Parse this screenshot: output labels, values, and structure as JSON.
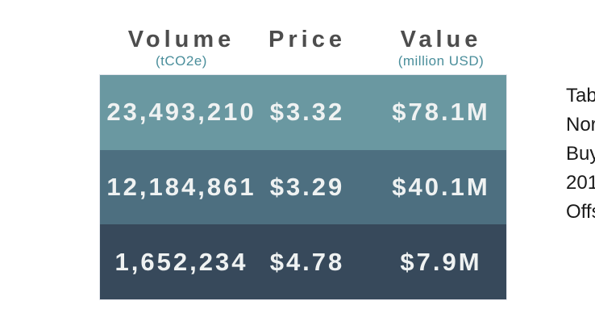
{
  "table": {
    "columns": [
      {
        "label": "Volume",
        "sublabel": "(tCO2e)"
      },
      {
        "label": "Price",
        "sublabel": ""
      },
      {
        "label": "Value",
        "sublabel": "(million USD)"
      }
    ],
    "rows": [
      {
        "volume": "23,493,210",
        "price": "$3.32",
        "value": "$78.1M",
        "color": "#6A98A1"
      },
      {
        "volume": "12,184,861",
        "price": "$3.29",
        "value": "$40.1M",
        "color": "#4D6F80"
      },
      {
        "volume": "1,652,234",
        "price": "$4.78",
        "value": "$7.9M",
        "color": "#37495B"
      }
    ]
  },
  "caption": {
    "lines": [
      "Tab",
      "Nor",
      "Buy",
      "201",
      "Offs"
    ]
  },
  "colors": {
    "header_text": "#4d4d4d",
    "subheader_text": "#4a8e9b",
    "row_text": "#eff2f2",
    "row1_bg": "#6A98A1",
    "row2_bg": "#4D6F80",
    "row3_bg": "#37495B",
    "background": "#ffffff",
    "caption_text": "#1a1a1a"
  },
  "chart_data": {
    "type": "table",
    "columns": [
      "Volume (tCO2e)",
      "Price",
      "Value (million USD)"
    ],
    "rows": [
      [
        "23,493,210",
        "$3.32",
        "$78.1M"
      ],
      [
        "12,184,861",
        "$3.29",
        "$40.1M"
      ],
      [
        "1,652,234",
        "$4.78",
        "$7.9M"
      ]
    ],
    "caption_fragments_visible": [
      "Tab",
      "Nor",
      "Buy",
      "201",
      "Offs"
    ]
  }
}
